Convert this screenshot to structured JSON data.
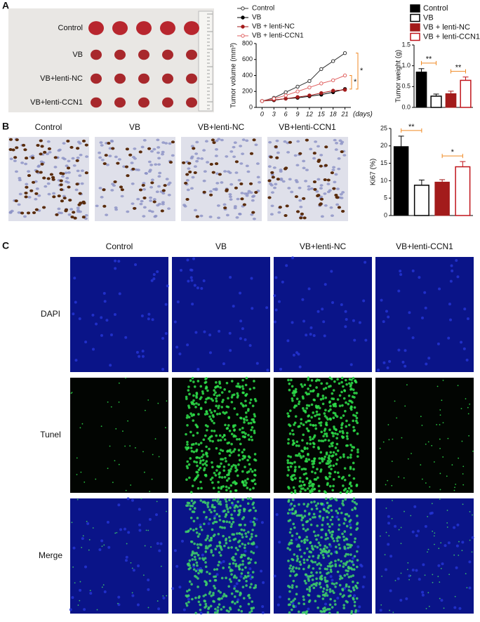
{
  "figure": {
    "panels": [
      "A",
      "B",
      "C"
    ],
    "tumor_rows": [
      "Control",
      "VB",
      "VB+lenti-NC",
      "VB+lenti-CCN1"
    ],
    "ihc_cols": [
      "Control",
      "VB",
      "VB+lenti-NC",
      "VB+lenti-CCN1"
    ],
    "if_cols": [
      "Control",
      "VB",
      "VB+lenti-NC",
      "VB+lenti-CCN1"
    ],
    "if_rows": [
      "DAPI",
      "Tunel",
      "Merge"
    ]
  },
  "chart_data": [
    {
      "type": "line",
      "ylabel": "Tumor volume (mm³)",
      "xlabel": "(days)",
      "x": [
        0,
        3,
        6,
        9,
        12,
        15,
        18,
        21
      ],
      "xlim": [
        -1.5,
        22.5
      ],
      "xticks": [
        0,
        3,
        6,
        9,
        12,
        15,
        18,
        21
      ],
      "ylim": [
        0,
        800
      ],
      "yticks": [
        0,
        200,
        400,
        600,
        800
      ],
      "series": [
        {
          "name": "Control",
          "color": "#333333",
          "marker": "open",
          "values": [
            80,
            120,
            190,
            260,
            330,
            480,
            580,
            680
          ]
        },
        {
          "name": "VB",
          "color": "#000000",
          "marker": "filled",
          "values": [
            80,
            90,
            110,
            120,
            140,
            160,
            190,
            230
          ]
        },
        {
          "name": "VB + lenti-NC",
          "color": "#a31b1b",
          "marker": "filled",
          "values": [
            80,
            95,
            110,
            130,
            150,
            180,
            210,
            220
          ]
        },
        {
          "name": "VB + lenti-CCN1",
          "color": "#e06060",
          "marker": "open",
          "values": [
            80,
            110,
            150,
            200,
            250,
            300,
            340,
            400
          ]
        }
      ],
      "annotations": [
        "*",
        "*"
      ],
      "annotation_color": "#f08a24"
    },
    {
      "type": "bar",
      "ylabel": "Tumor weight (g)",
      "categories": [
        "Control",
        "VB",
        "VB + lenti-NC",
        "VB + lenti-CCN1"
      ],
      "values": [
        0.85,
        0.27,
        0.33,
        0.65
      ],
      "errors": [
        0.08,
        0.05,
        0.06,
        0.08
      ],
      "colors": [
        "#000000",
        "#000000",
        "#a31b1b",
        "#c0141b"
      ],
      "filled": [
        true,
        false,
        true,
        false
      ],
      "ylim": [
        0,
        1.5
      ],
      "yticks": [
        {
          "value": 0,
          "label": "0.0"
        },
        {
          "value": 0.5,
          "label": "0.5"
        },
        {
          "value": 1,
          "label": "1.0"
        },
        {
          "value": 1.5,
          "label": "1.5"
        }
      ],
      "legend": true,
      "annotations": [
        "**",
        "**"
      ],
      "annotation_color": "#f08a24"
    },
    {
      "type": "bar",
      "ylabel": "Ki67 (%)",
      "values": [
        19.8,
        8.7,
        9.6,
        14.0
      ],
      "errors": [
        3.0,
        1.5,
        0.7,
        1.5
      ],
      "colors": [
        "#000000",
        "#000000",
        "#a31b1b",
        "#c0141b"
      ],
      "filled": [
        true,
        false,
        true,
        false
      ],
      "ylim": [
        0,
        25
      ],
      "yticks": [
        0,
        5,
        10,
        15,
        20,
        25
      ],
      "legend": false,
      "annotations": [
        "**",
        "*"
      ],
      "annotation_color": "#f08a24"
    }
  ]
}
